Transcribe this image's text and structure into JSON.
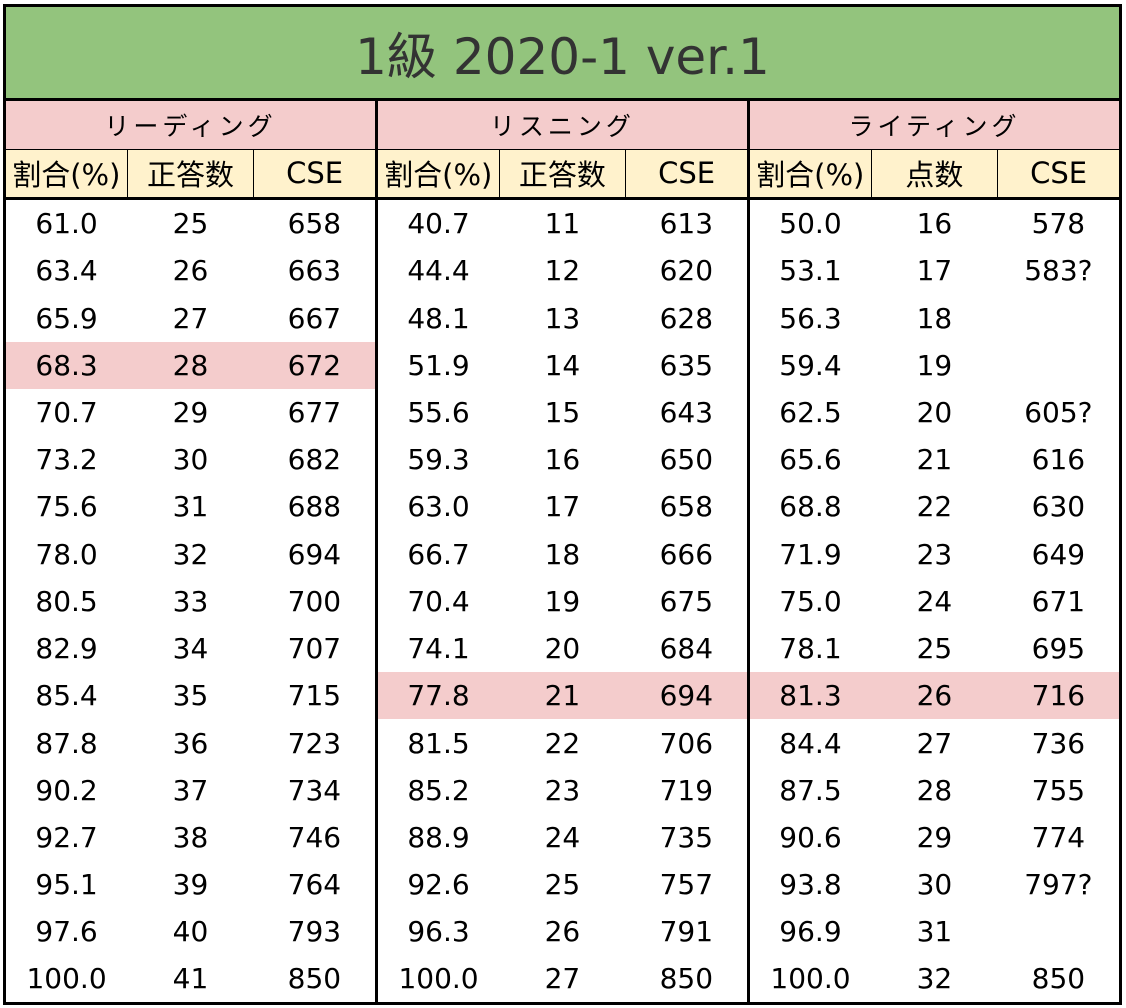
{
  "title": "1級 2020-1 ver.1",
  "sections": [
    {
      "name": "リーディング",
      "columns": [
        "割合(%)",
        "正答数",
        "CSE"
      ]
    },
    {
      "name": "リスニング",
      "columns": [
        "割合(%)",
        "正答数",
        "CSE"
      ]
    },
    {
      "name": "ライティング",
      "columns": [
        "割合(%)",
        "点数",
        "CSE"
      ]
    }
  ],
  "rows": [
    [
      "61.0",
      "25",
      "658",
      "40.7",
      "11",
      "613",
      "50.0",
      "16",
      "578"
    ],
    [
      "63.4",
      "26",
      "663",
      "44.4",
      "12",
      "620",
      "53.1",
      "17",
      "583?"
    ],
    [
      "65.9",
      "27",
      "667",
      "48.1",
      "13",
      "628",
      "56.3",
      "18",
      ""
    ],
    [
      "68.3",
      "28",
      "672",
      "51.9",
      "14",
      "635",
      "59.4",
      "19",
      ""
    ],
    [
      "70.7",
      "29",
      "677",
      "55.6",
      "15",
      "643",
      "62.5",
      "20",
      "605?"
    ],
    [
      "73.2",
      "30",
      "682",
      "59.3",
      "16",
      "650",
      "65.6",
      "21",
      "616"
    ],
    [
      "75.6",
      "31",
      "688",
      "63.0",
      "17",
      "658",
      "68.8",
      "22",
      "630"
    ],
    [
      "78.0",
      "32",
      "694",
      "66.7",
      "18",
      "666",
      "71.9",
      "23",
      "649"
    ],
    [
      "80.5",
      "33",
      "700",
      "70.4",
      "19",
      "675",
      "75.0",
      "24",
      "671"
    ],
    [
      "82.9",
      "34",
      "707",
      "74.1",
      "20",
      "684",
      "78.1",
      "25",
      "695"
    ],
    [
      "85.4",
      "35",
      "715",
      "77.8",
      "21",
      "694",
      "81.3",
      "26",
      "716"
    ],
    [
      "87.8",
      "36",
      "723",
      "81.5",
      "22",
      "706",
      "84.4",
      "27",
      "736"
    ],
    [
      "90.2",
      "37",
      "734",
      "85.2",
      "23",
      "719",
      "87.5",
      "28",
      "755"
    ],
    [
      "92.7",
      "38",
      "746",
      "88.9",
      "24",
      "735",
      "90.6",
      "29",
      "774"
    ],
    [
      "95.1",
      "39",
      "764",
      "92.6",
      "25",
      "757",
      "93.8",
      "30",
      "797?"
    ],
    [
      "97.6",
      "40",
      "793",
      "96.3",
      "26",
      "791",
      "96.9",
      "31",
      ""
    ],
    [
      "100.0",
      "41",
      "850",
      "100.0",
      "27",
      "850",
      "100.0",
      "32",
      "850"
    ]
  ],
  "highlights": [
    {
      "section": 0,
      "row": 3
    },
    {
      "section": 1,
      "row": 10
    },
    {
      "section": 2,
      "row": 10
    }
  ],
  "colors": {
    "title_bg": "#93c47d",
    "section_bg": "#f4cccc",
    "header_bg": "#fff2cc",
    "highlight_bg": "#f4cccc"
  }
}
